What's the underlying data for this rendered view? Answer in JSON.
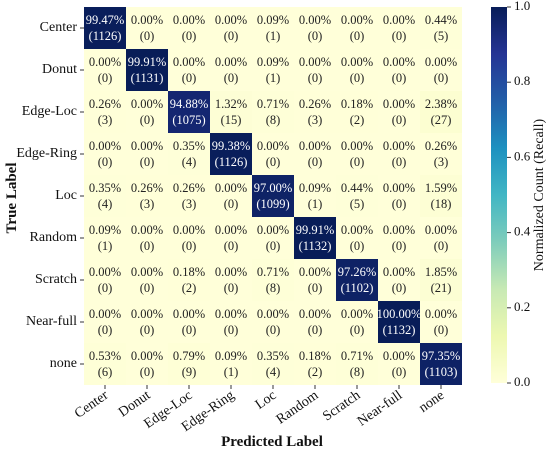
{
  "chart_data": {
    "type": "heatmap",
    "xlabel": "Predicted Label",
    "ylabel": "True Label",
    "row_labels": [
      "Center",
      "Donut",
      "Edge-Loc",
      "Edge-Ring",
      "Loc",
      "Random",
      "Scratch",
      "Near-full",
      "none"
    ],
    "col_labels": [
      "Center",
      "Donut",
      "Edge-Loc",
      "Edge-Ring",
      "Loc",
      "Random",
      "Scratch",
      "Near-full",
      "none"
    ],
    "percent": [
      [
        "99.47%",
        "0.00%",
        "0.00%",
        "0.00%",
        "0.09%",
        "0.00%",
        "0.00%",
        "0.00%",
        "0.44%"
      ],
      [
        "0.00%",
        "99.91%",
        "0.00%",
        "0.00%",
        "0.09%",
        "0.00%",
        "0.00%",
        "0.00%",
        "0.00%"
      ],
      [
        "0.26%",
        "0.00%",
        "94.88%",
        "1.32%",
        "0.71%",
        "0.26%",
        "0.18%",
        "0.00%",
        "2.38%"
      ],
      [
        "0.00%",
        "0.00%",
        "0.35%",
        "99.38%",
        "0.00%",
        "0.00%",
        "0.00%",
        "0.00%",
        "0.26%"
      ],
      [
        "0.35%",
        "0.26%",
        "0.26%",
        "0.00%",
        "97.00%",
        "0.09%",
        "0.44%",
        "0.00%",
        "1.59%"
      ],
      [
        "0.09%",
        "0.00%",
        "0.00%",
        "0.00%",
        "0.00%",
        "99.91%",
        "0.00%",
        "0.00%",
        "0.00%"
      ],
      [
        "0.00%",
        "0.00%",
        "0.18%",
        "0.00%",
        "0.71%",
        "0.00%",
        "97.26%",
        "0.00%",
        "1.85%"
      ],
      [
        "0.00%",
        "0.00%",
        "0.00%",
        "0.00%",
        "0.00%",
        "0.00%",
        "0.00%",
        "100.00%",
        "0.00%"
      ],
      [
        "0.53%",
        "0.00%",
        "0.79%",
        "0.09%",
        "0.35%",
        "0.18%",
        "0.71%",
        "0.00%",
        "97.35%"
      ]
    ],
    "counts": [
      [
        "(1126)",
        "(0)",
        "(0)",
        "(0)",
        "(1)",
        "(0)",
        "(0)",
        "(0)",
        "(5)"
      ],
      [
        "(0)",
        "(1131)",
        "(0)",
        "(0)",
        "(1)",
        "(0)",
        "(0)",
        "(0)",
        "(0)"
      ],
      [
        "(3)",
        "(0)",
        "(1075)",
        "(15)",
        "(8)",
        "(3)",
        "(2)",
        "(0)",
        "(27)"
      ],
      [
        "(0)",
        "(0)",
        "(4)",
        "(1126)",
        "(0)",
        "(0)",
        "(0)",
        "(0)",
        "(3)"
      ],
      [
        "(4)",
        "(3)",
        "(3)",
        "(0)",
        "(1099)",
        "(1)",
        "(5)",
        "(0)",
        "(18)"
      ],
      [
        "(1)",
        "(0)",
        "(0)",
        "(0)",
        "(0)",
        "(1132)",
        "(0)",
        "(0)",
        "(0)"
      ],
      [
        "(0)",
        "(0)",
        "(2)",
        "(0)",
        "(8)",
        "(0)",
        "(1102)",
        "(0)",
        "(21)"
      ],
      [
        "(0)",
        "(0)",
        "(0)",
        "(0)",
        "(0)",
        "(0)",
        "(0)",
        "(1132)",
        "(0)"
      ],
      [
        "(6)",
        "(0)",
        "(9)",
        "(1)",
        "(4)",
        "(2)",
        "(8)",
        "(0)",
        "(1103)"
      ]
    ],
    "colorbar": {
      "label": "Normalized Count (Recall)",
      "range": [
        0.0,
        1.0
      ],
      "ticks": [
        "0.0",
        "0.2",
        "0.4",
        "0.6",
        "0.8",
        "1.0"
      ],
      "colormap": "YlGnBu"
    }
  }
}
